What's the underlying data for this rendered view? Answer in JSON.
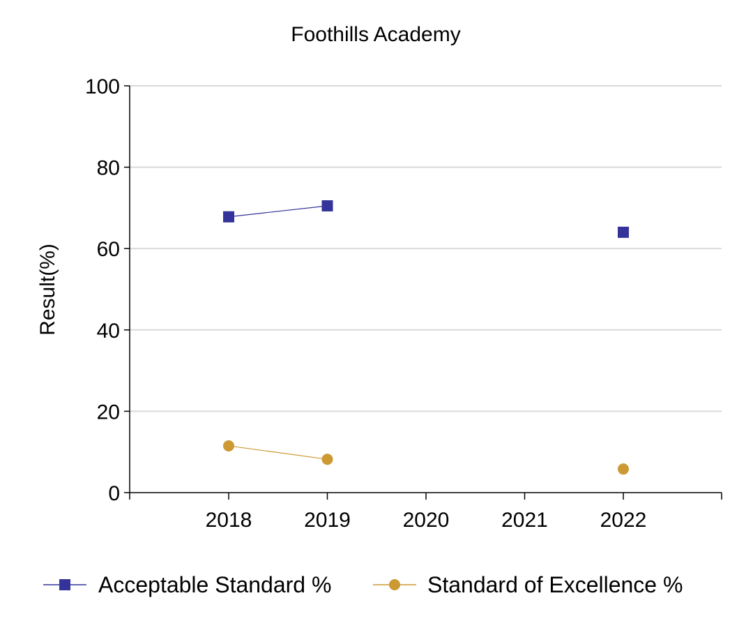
{
  "chart_data": {
    "type": "line",
    "title": "Foothills Academy",
    "xlabel": "",
    "ylabel": "Result(%)",
    "categories": [
      "2018",
      "2019",
      "2020",
      "2021",
      "2022"
    ],
    "ylim": [
      0,
      100
    ],
    "yticks": [
      "0",
      "20",
      "40",
      "60",
      "80",
      "100"
    ],
    "grid": true,
    "legend_position": "bottom",
    "series": [
      {
        "name": "Acceptable Standard %",
        "color": "#333399",
        "marker": "square",
        "values": [
          67.8,
          70.5,
          null,
          null,
          64.0
        ]
      },
      {
        "name": "Standard of Excellence %",
        "color": "#CC9933",
        "marker": "circle",
        "values": [
          11.5,
          8.2,
          null,
          null,
          5.8
        ]
      }
    ]
  }
}
